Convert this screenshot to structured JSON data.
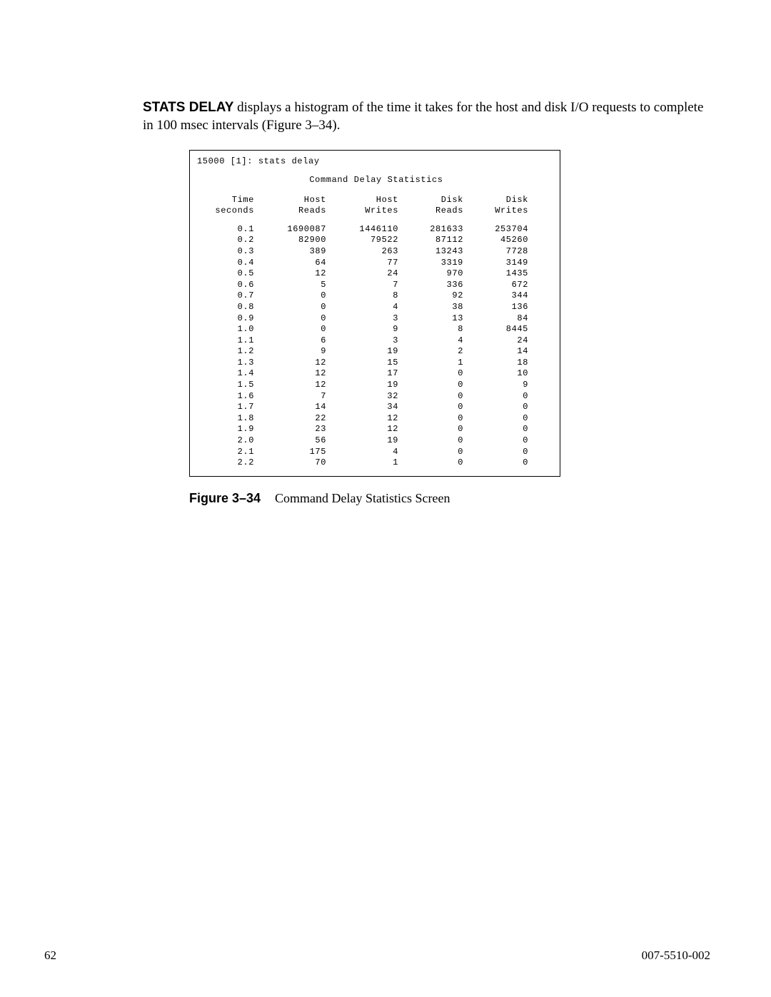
{
  "intro": {
    "bold_label": "STATS DELAY",
    "rest": " displays a histogram of the time it takes for the host and disk I/O requests to complete in 100 msec intervals (Figure 3–34)."
  },
  "figure": {
    "command_line": "15000 [1]: stats delay",
    "title": "Command Delay Statistics",
    "columns": {
      "time_l1": "Time",
      "time_l2": "seconds",
      "host_reads_l1": "Host",
      "host_reads_l2": "Reads",
      "host_writes_l1": "Host",
      "host_writes_l2": "Writes",
      "disk_reads_l1": "Disk",
      "disk_reads_l2": "Reads",
      "disk_writes_l1": "Disk",
      "disk_writes_l2": "Writes"
    },
    "rows": [
      {
        "time": "0.1",
        "host_reads": "1690087",
        "host_writes": "1446110",
        "disk_reads": "281633",
        "disk_writes": "253704"
      },
      {
        "time": "0.2",
        "host_reads": "82900",
        "host_writes": "79522",
        "disk_reads": "87112",
        "disk_writes": "45260"
      },
      {
        "time": "0.3",
        "host_reads": "389",
        "host_writes": "263",
        "disk_reads": "13243",
        "disk_writes": "7728"
      },
      {
        "time": "0.4",
        "host_reads": "64",
        "host_writes": "77",
        "disk_reads": "3319",
        "disk_writes": "3149"
      },
      {
        "time": "0.5",
        "host_reads": "12",
        "host_writes": "24",
        "disk_reads": "970",
        "disk_writes": "1435"
      },
      {
        "time": "0.6",
        "host_reads": "5",
        "host_writes": "7",
        "disk_reads": "336",
        "disk_writes": "672"
      },
      {
        "time": "0.7",
        "host_reads": "0",
        "host_writes": "8",
        "disk_reads": "92",
        "disk_writes": "344"
      },
      {
        "time": "0.8",
        "host_reads": "0",
        "host_writes": "4",
        "disk_reads": "38",
        "disk_writes": "136"
      },
      {
        "time": "0.9",
        "host_reads": "0",
        "host_writes": "3",
        "disk_reads": "13",
        "disk_writes": "84"
      },
      {
        "time": "1.0",
        "host_reads": "0",
        "host_writes": "9",
        "disk_reads": "8",
        "disk_writes": "8445"
      },
      {
        "time": "1.1",
        "host_reads": "6",
        "host_writes": "3",
        "disk_reads": "4",
        "disk_writes": "24"
      },
      {
        "time": "1.2",
        "host_reads": "9",
        "host_writes": "19",
        "disk_reads": "2",
        "disk_writes": "14"
      },
      {
        "time": "1.3",
        "host_reads": "12",
        "host_writes": "15",
        "disk_reads": "1",
        "disk_writes": "18"
      },
      {
        "time": "1.4",
        "host_reads": "12",
        "host_writes": "17",
        "disk_reads": "0",
        "disk_writes": "10"
      },
      {
        "time": "1.5",
        "host_reads": "12",
        "host_writes": "19",
        "disk_reads": "0",
        "disk_writes": "9"
      },
      {
        "time": "1.6",
        "host_reads": "7",
        "host_writes": "32",
        "disk_reads": "0",
        "disk_writes": "0"
      },
      {
        "time": "1.7",
        "host_reads": "14",
        "host_writes": "34",
        "disk_reads": "0",
        "disk_writes": "0"
      },
      {
        "time": "1.8",
        "host_reads": "22",
        "host_writes": "12",
        "disk_reads": "0",
        "disk_writes": "0"
      },
      {
        "time": "1.9",
        "host_reads": "23",
        "host_writes": "12",
        "disk_reads": "0",
        "disk_writes": "0"
      },
      {
        "time": "2.0",
        "host_reads": "56",
        "host_writes": "19",
        "disk_reads": "0",
        "disk_writes": "0"
      },
      {
        "time": "2.1",
        "host_reads": "175",
        "host_writes": "4",
        "disk_reads": "0",
        "disk_writes": "0"
      },
      {
        "time": "2.2",
        "host_reads": "70",
        "host_writes": "1",
        "disk_reads": "0",
        "disk_writes": "0"
      }
    ]
  },
  "caption": {
    "label": "Figure 3–34",
    "text": "Command Delay Statistics Screen"
  },
  "footer": {
    "page_number": "62",
    "doc_id": "007-5510-002"
  }
}
